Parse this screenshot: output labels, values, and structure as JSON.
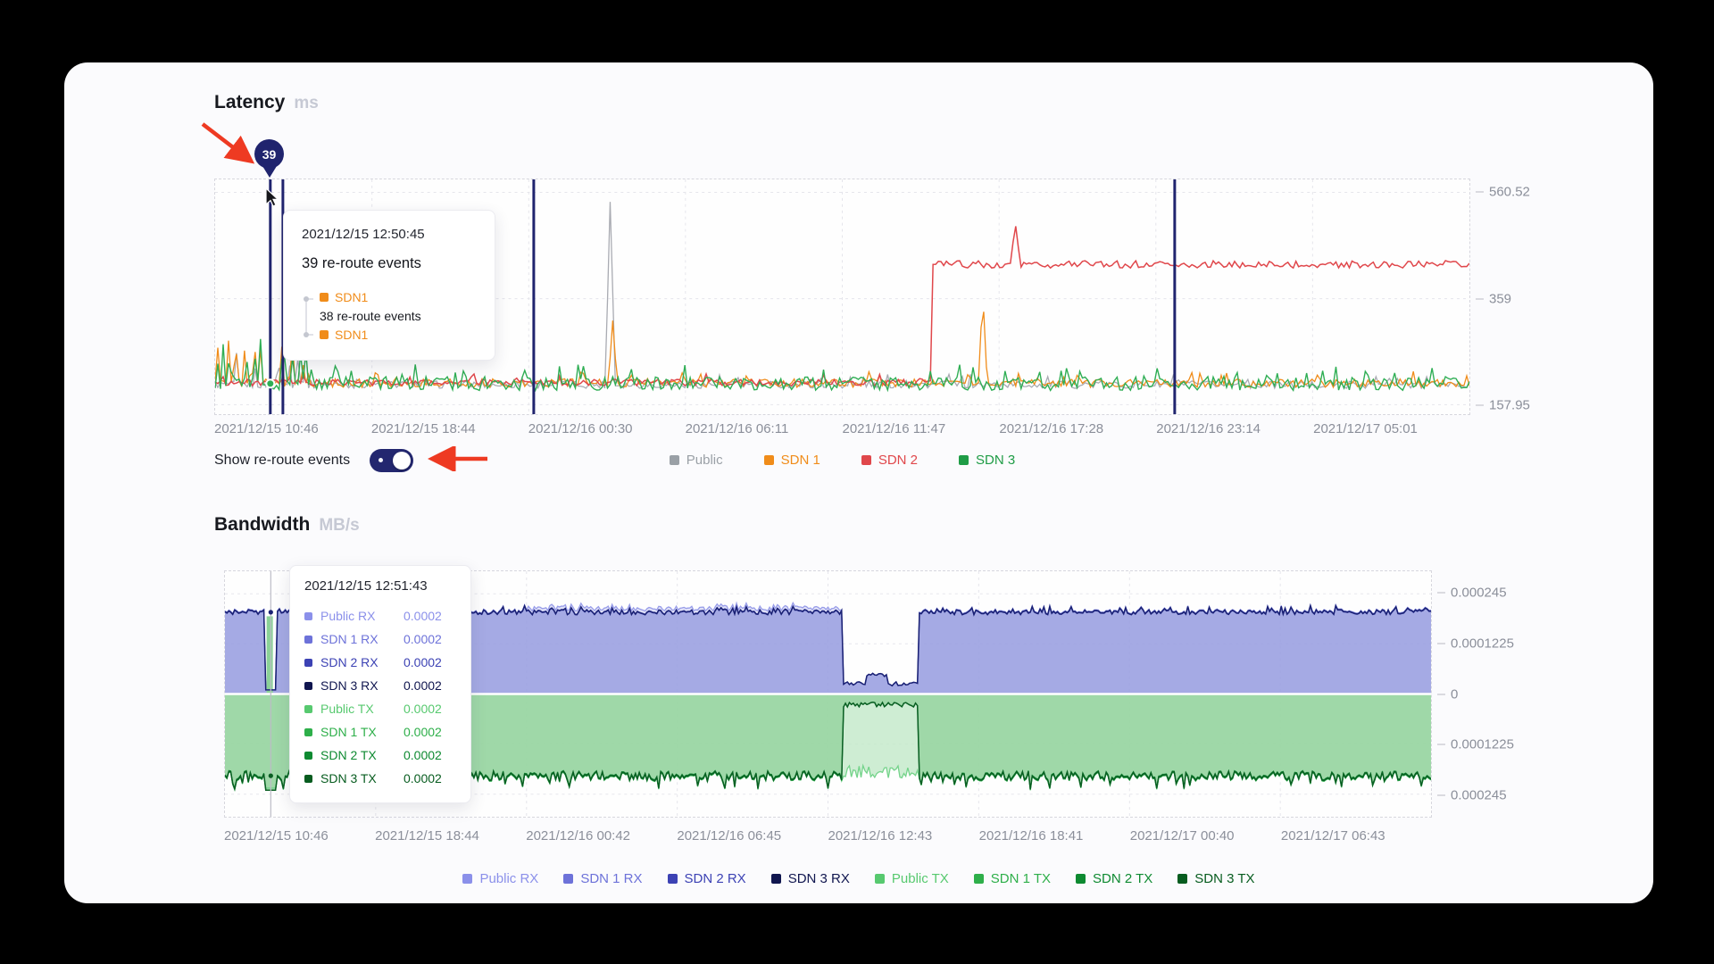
{
  "page": {
    "background": "#000000",
    "card_background": "#fbfbfd",
    "annotation_color": "#ee3a22",
    "event_color": "#20246e"
  },
  "latency": {
    "title": "Latency",
    "unit": "ms",
    "marker": {
      "value": "39"
    },
    "tooltip": {
      "timestamp": "2021/12/15 12:50:45",
      "headline": "39 re-route events",
      "items": [
        {
          "label": "SDN1",
          "color": "#f08c1a"
        },
        {
          "label": "38 re-route events",
          "color": "#17191f"
        },
        {
          "label": "SDN1",
          "color": "#f08c1a"
        }
      ]
    },
    "toggle": {
      "label": "Show re-route events",
      "state": "on"
    },
    "legend": [
      {
        "label": "Public",
        "color": "#9aa0a6"
      },
      {
        "label": "SDN 1",
        "color": "#f08c1a"
      },
      {
        "label": "SDN 2",
        "color": "#e0474b"
      },
      {
        "label": "SDN 3",
        "color": "#1f9c46"
      }
    ],
    "y_ticks": [
      "560.52",
      "359",
      "157.95"
    ],
    "x_ticks": [
      "2021/12/15 10:46",
      "2021/12/15 18:44",
      "2021/12/16 00:30",
      "2021/12/16 06:11",
      "2021/12/16 11:47",
      "2021/12/16 17:28",
      "2021/12/16 23:14",
      "2021/12/17 05:01"
    ]
  },
  "bandwidth": {
    "title": "Bandwidth",
    "unit": "MB/s",
    "tooltip": {
      "timestamp": "2021/12/15 12:51:43",
      "rows": [
        {
          "label": "Public RX",
          "value": "0.0002",
          "color": "#8b90ea"
        },
        {
          "label": "SDN 1 RX",
          "value": "0.0002",
          "color": "#6d72d9"
        },
        {
          "label": "SDN 2 RX",
          "value": "0.0002",
          "color": "#3c42b4"
        },
        {
          "label": "SDN 3 RX",
          "value": "0.0002",
          "color": "#10164f"
        },
        {
          "label": "Public TX",
          "value": "0.0002",
          "color": "#57c96f"
        },
        {
          "label": "SDN 1 TX",
          "value": "0.0002",
          "color": "#2eaf4a"
        },
        {
          "label": "SDN 2 TX",
          "value": "0.0002",
          "color": "#0e8a31"
        },
        {
          "label": "SDN 3 TX",
          "value": "0.0002",
          "color": "#075c1f"
        }
      ]
    },
    "legend": [
      {
        "label": "Public RX",
        "color": "#8b90ea"
      },
      {
        "label": "SDN 1 RX",
        "color": "#6d72d9"
      },
      {
        "label": "SDN 2 RX",
        "color": "#3c42b4"
      },
      {
        "label": "SDN 3 RX",
        "color": "#10164f"
      },
      {
        "label": "Public TX",
        "color": "#57c96f"
      },
      {
        "label": "SDN 1 TX",
        "color": "#2eaf4a"
      },
      {
        "label": "SDN 2 TX",
        "color": "#0e8a31"
      },
      {
        "label": "SDN 3 TX",
        "color": "#075c1f"
      }
    ],
    "y_ticks": [
      "0.000245",
      "0.0001225",
      "0",
      "0.0001225",
      "0.000245"
    ],
    "x_ticks": [
      "2021/12/15 10:46",
      "2021/12/15 18:44",
      "2021/12/16 00:42",
      "2021/12/16 06:45",
      "2021/12/16 12:43",
      "2021/12/16 18:41",
      "2021/12/17 00:40",
      "2021/12/17 06:43"
    ]
  },
  "chart_data": [
    {
      "type": "line",
      "title": "Latency",
      "ylabel": "ms",
      "ylim": [
        140,
        585
      ],
      "y_ticks": [
        560.52,
        359,
        157.95
      ],
      "x_ticks": [
        "2021/12/15 10:46",
        "2021/12/15 18:44",
        "2021/12/16 00:30",
        "2021/12/16 06:11",
        "2021/12/16 11:47",
        "2021/12/16 17:28",
        "2021/12/16 23:14",
        "2021/12/17 05:01"
      ],
      "grid": true,
      "legend_position": "bottom",
      "event_color": "#20246e",
      "events": [
        {
          "x": 0.044,
          "count": 39,
          "time": "2021/12/15 12:50:45"
        },
        {
          "x": 0.054,
          "count": 38
        },
        {
          "x": 0.254
        },
        {
          "x": 0.765
        }
      ],
      "series": [
        {
          "name": "Public",
          "color": "#a9abb2",
          "baseline": 196,
          "noise": 7,
          "width": 1.3,
          "left_burst": 60,
          "spikes": [
            {
              "x": 0.315,
              "value": 552,
              "wd": 0.004
            }
          ]
        },
        {
          "name": "SDN 1",
          "color": "#f08c1a",
          "baseline": 199,
          "noise": 8,
          "width": 1.3,
          "left_burst": 90,
          "spikes": [
            {
              "x": 0.317,
              "value": 318,
              "wd": 0.0035
            },
            {
              "x": 0.612,
              "value": 372,
              "wd": 0.0035
            }
          ]
        },
        {
          "name": "SDN 2",
          "color": "#e0474b",
          "baseline": 200,
          "noise": 6,
          "width": 1.5,
          "step": {
            "from": 0.572,
            "value": 424,
            "noise": 7
          },
          "spikes": [
            {
              "x": 0.638,
              "value": 502,
              "base": 424,
              "wd": 0.004
            }
          ]
        },
        {
          "name": "SDN 3",
          "color": "#2fae54",
          "baseline": 198,
          "noise": 13,
          "width": 1.4,
          "left_burst": 80
        }
      ]
    },
    {
      "type": "area",
      "title": "Bandwidth",
      "ylabel": "MB/s",
      "ylim": [
        -0.0003,
        0.0003
      ],
      "y_ticks": [
        0.000245,
        0.0001225,
        0,
        -0.0001225,
        -0.000245
      ],
      "x_ticks": [
        "2021/12/15 10:46",
        "2021/12/15 18:44",
        "2021/12/16 00:42",
        "2021/12/16 06:45",
        "2021/12/16 12:43",
        "2021/12/16 18:41",
        "2021/12/17 00:40",
        "2021/12/17 06:43"
      ],
      "rx_base": 0.0002,
      "tx_base": 0.0002,
      "dip": {
        "from": 0.512,
        "to": 0.575,
        "rx_value": 2e-05,
        "tx_value": 2e-05,
        "public_tx_value": 0.00019
      },
      "hover": {
        "x": 0.038,
        "time": "2021/12/15 12:51:43",
        "rx": 0.0002,
        "tx": 0.0002
      },
      "series_rx": [
        {
          "name": "Public RX",
          "color": "#989de9",
          "value": 0.0002
        },
        {
          "name": "SDN 1 RX",
          "color": "#7077d6",
          "value": 0.0002
        },
        {
          "name": "SDN 2 RX",
          "color": "#454cb5",
          "value": 0.0002
        },
        {
          "name": "SDN 3 RX",
          "color": "#1a2173",
          "value": 0.0002
        }
      ],
      "series_tx": [
        {
          "name": "Public TX",
          "color": "#74d38a",
          "value": 0.0002
        },
        {
          "name": "SDN 1 TX",
          "color": "#33b152",
          "value": 0.0002
        },
        {
          "name": "SDN 2 TX",
          "color": "#128d36",
          "value": 0.0002
        },
        {
          "name": "SDN 3 TX",
          "color": "#0a5f23",
          "value": 0.0002
        }
      ]
    }
  ]
}
